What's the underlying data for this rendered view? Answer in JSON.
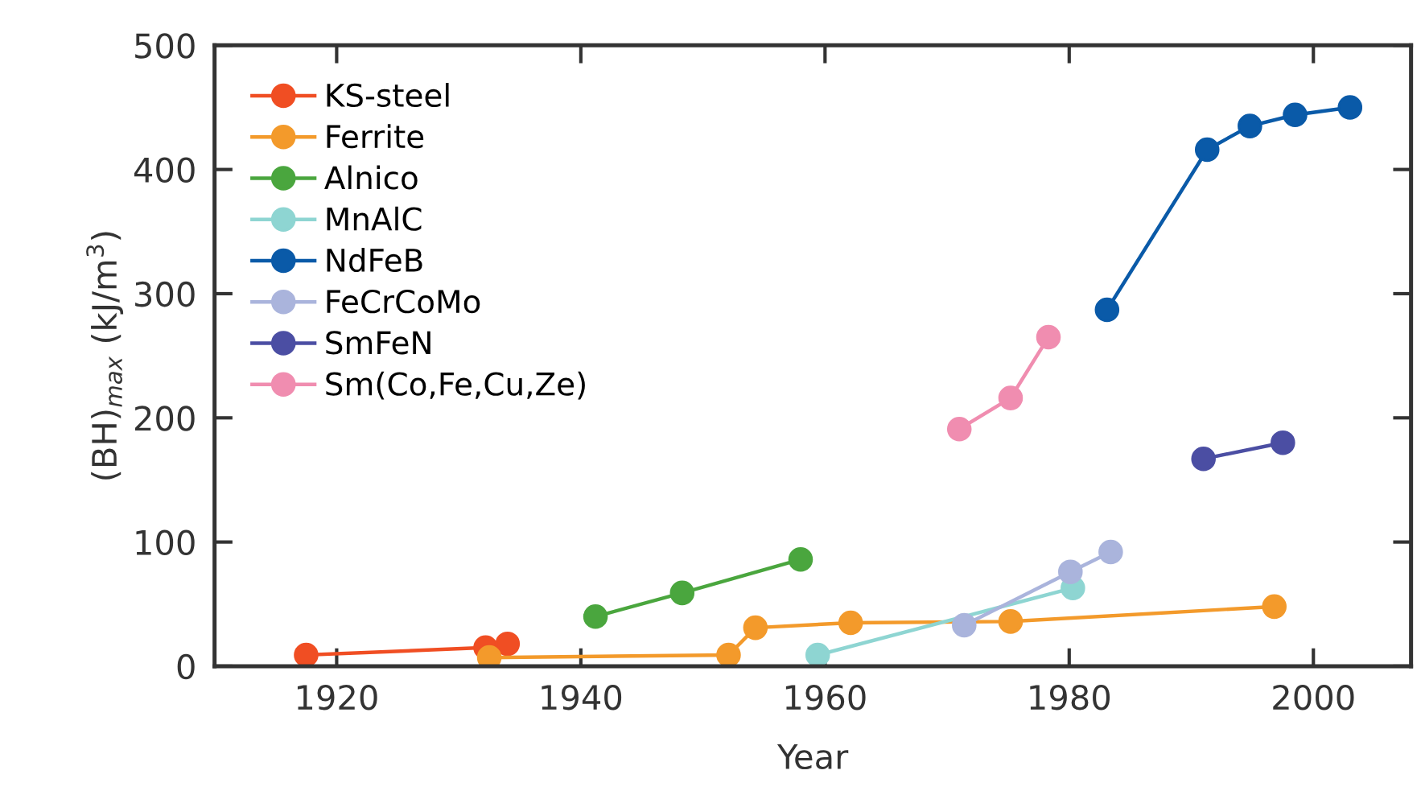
{
  "chart_data": {
    "type": "line",
    "xlabel": "Year",
    "ylabel": "(BH)$_{max}$ (kJ/m$^{3}$)",
    "xlim": [
      1910,
      2008
    ],
    "xticks": [
      1920,
      1940,
      1960,
      1980,
      2000
    ],
    "ylim": [
      0,
      500
    ],
    "yticks": [
      0,
      100,
      200,
      300,
      400,
      500
    ],
    "grid": false,
    "legend": "top left",
    "marker": "circle",
    "line_style": "solid",
    "series": [
      {
        "name": "KS-steel",
        "color": "#f04e23",
        "x": [
          1917.5,
          1932.2,
          1934.0
        ],
        "values": [
          9,
          15,
          18
        ]
      },
      {
        "name": "Ferrite",
        "color": "#f39a2b",
        "x": [
          1932.5,
          1952.1,
          1954.3,
          1962.1,
          1975.2,
          1996.8
        ],
        "values": [
          7,
          9,
          31,
          35,
          36,
          48
        ]
      },
      {
        "name": "Alnico",
        "color": "#4aa63e",
        "x": [
          1941.2,
          1948.3,
          1958.0
        ],
        "values": [
          40,
          59,
          86
        ]
      },
      {
        "name": "MnAlC",
        "color": "#8ed5d2",
        "x": [
          1959.4,
          1980.3
        ],
        "values": [
          9,
          63
        ]
      },
      {
        "name": "NdFeB",
        "color": "#0a5aa8",
        "x": [
          1983.1,
          1991.3,
          1994.8,
          1998.5,
          2003.0
        ],
        "values": [
          287,
          416,
          435,
          444,
          450
        ]
      },
      {
        "name": "FeCrCoMo",
        "color": "#aab4dc",
        "x": [
          1971.4,
          1980.1,
          1983.4
        ],
        "values": [
          33,
          76,
          92
        ]
      },
      {
        "name": "SmFeN",
        "color": "#4b4ea3",
        "x": [
          1991.0,
          1997.5
        ],
        "values": [
          167,
          180
        ]
      },
      {
        "name": "Sm(Co,Fe,Cu,Ze)",
        "color": "#f08db0",
        "x": [
          1971.0,
          1975.2,
          1978.3
        ],
        "values": [
          191,
          216,
          265
        ]
      }
    ]
  }
}
